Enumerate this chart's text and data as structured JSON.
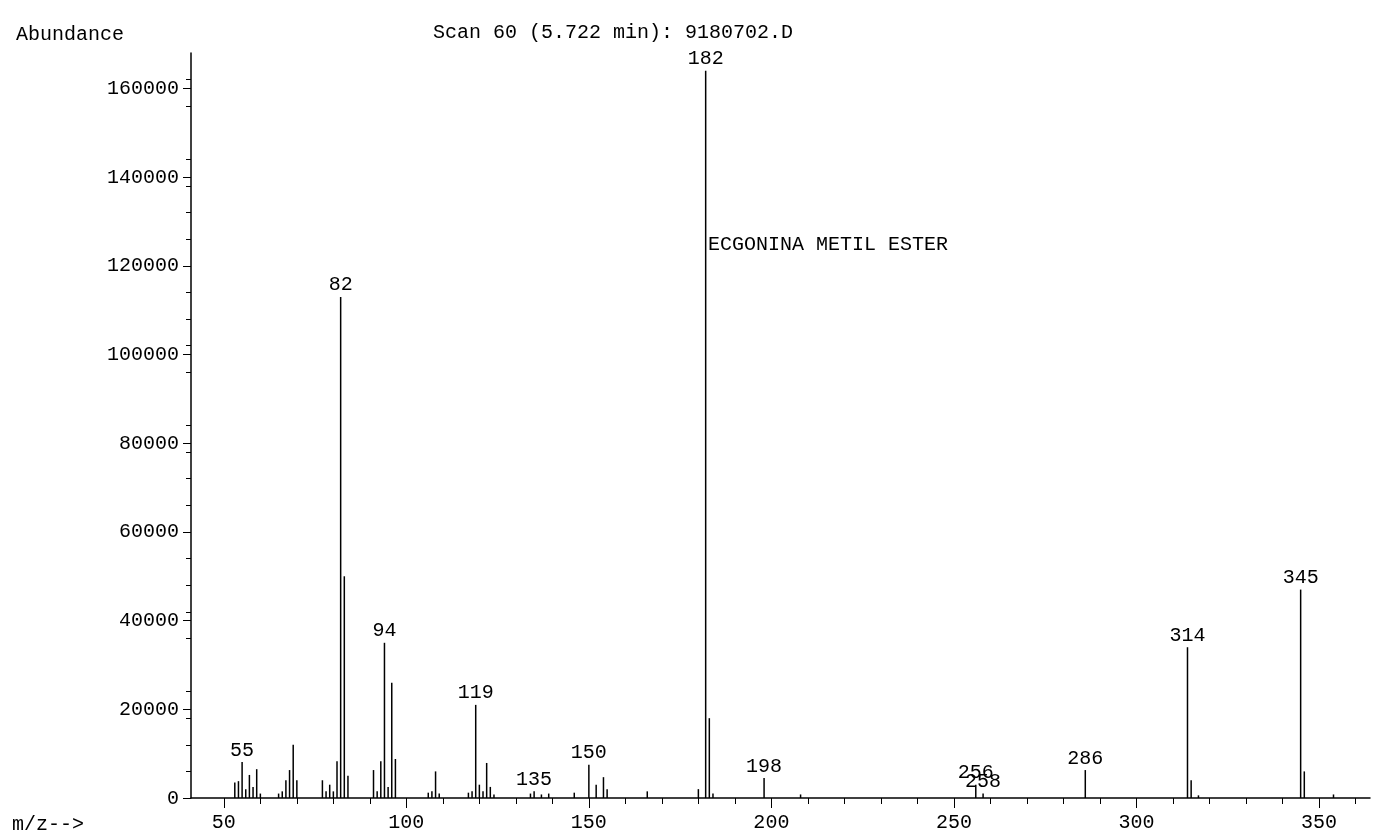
{
  "chart_data": {
    "type": "bar",
    "title": "Scan 60 (5.722 min): 9180702.D",
    "xlabel": "m/z-->",
    "ylabel": "Abundance",
    "x": [
      53,
      54,
      55,
      56,
      57,
      58,
      59,
      60,
      65,
      66,
      67,
      68,
      69,
      70,
      77,
      78,
      79,
      80,
      81,
      82,
      83,
      84,
      91,
      92,
      93,
      94,
      95,
      96,
      97,
      106,
      107,
      108,
      109,
      117,
      118,
      119,
      120,
      121,
      122,
      123,
      124,
      134,
      135,
      137,
      139,
      146,
      150,
      152,
      154,
      155,
      166,
      180,
      182,
      183,
      184,
      198,
      208,
      256,
      258,
      286,
      314,
      315,
      317,
      345,
      346,
      354
    ],
    "values": [
      3500,
      3800,
      8100,
      2000,
      5200,
      2500,
      6500,
      1000,
      1000,
      1500,
      4000,
      6300,
      12000,
      4000,
      4000,
      1500,
      3000,
      1500,
      8300,
      113000,
      50000,
      5000,
      6300,
      1500,
      8300,
      35000,
      2500,
      26000,
      8800,
      1200,
      1500,
      6000,
      1000,
      1200,
      1500,
      21000,
      3000,
      1500,
      7900,
      2500,
      800,
      1000,
      1500,
      800,
      1000,
      1200,
      7500,
      3000,
      4700,
      2000,
      1500,
      2000,
      164000,
      18000,
      1000,
      4500,
      800,
      3000,
      1000,
      6300,
      34000,
      4000,
      600,
      47000,
      6000,
      800
    ],
    "color": "#000000",
    "xlim": [
      41,
      364
    ],
    "xticks": [
      50,
      100,
      150,
      200,
      250,
      300,
      350
    ],
    "ylim": [
      0,
      168000
    ],
    "yticks": [
      0,
      20000,
      40000,
      60000,
      80000,
      100000,
      120000,
      140000,
      160000
    ],
    "grid": false,
    "annotations": [
      {
        "text": "55",
        "x": 55,
        "y": 8100
      },
      {
        "text": "82",
        "x": 82,
        "y": 113000
      },
      {
        "text": "94",
        "x": 94,
        "y": 35000
      },
      {
        "text": "119",
        "x": 119,
        "y": 21000
      },
      {
        "text": "135",
        "x": 135,
        "y": 1500
      },
      {
        "text": "150",
        "x": 150,
        "y": 7500
      },
      {
        "text": "182",
        "x": 182,
        "y": 164000
      },
      {
        "text": "198",
        "x": 198,
        "y": 4500
      },
      {
        "text": "256",
        "x": 256,
        "y": 3000
      },
      {
        "text": "258",
        "x": 258,
        "y": 1000
      },
      {
        "text": "286",
        "x": 286,
        "y": 6300
      },
      {
        "text": "314",
        "x": 314,
        "y": 34000
      },
      {
        "text": "345",
        "x": 345,
        "y": 47000
      },
      "ECGONINA METIL ESTER"
    ]
  }
}
